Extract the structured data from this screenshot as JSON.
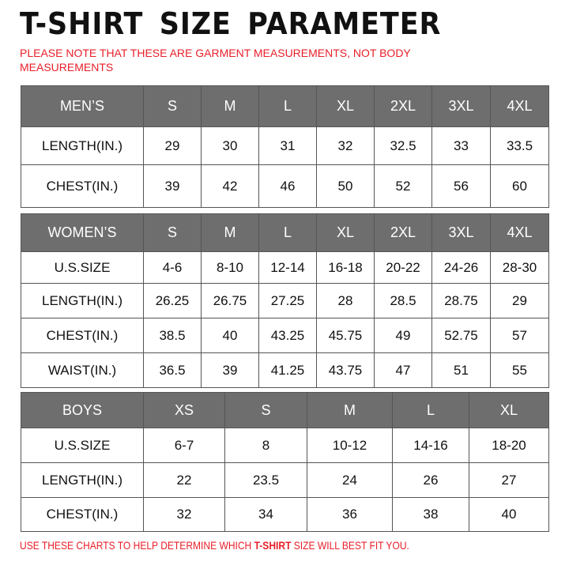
{
  "title": "T-SHIRT SIZE PARAMETER",
  "note": "PLEASE NOTE THAT THESE ARE GARMENT MEASUREMENTS, NOT BODY MEASUREMENTS",
  "footer": {
    "before": "USE THESE CHARTS TO HELP DETERMINE WHICH ",
    "bold": "T-SHIRT",
    "after": " SIZE WILL BEST FIT YOU."
  },
  "colors": {
    "header_bg": "#6e6e6e",
    "note_red": "#e8202a"
  },
  "tables": {
    "men": {
      "header": [
        "MEN’S",
        "S",
        "M",
        "L",
        "XL",
        "2XL",
        "3XL",
        "4XL"
      ],
      "rows": [
        [
          "LENGTH(IN.)",
          "29",
          "30",
          "31",
          "32",
          "32.5",
          "33",
          "33.5"
        ],
        [
          "CHEST(IN.)",
          "39",
          "42",
          "46",
          "50",
          "52",
          "56",
          "60"
        ]
      ]
    },
    "women": {
      "header": [
        "WOMEN’S",
        "S",
        "M",
        "L",
        "XL",
        "2XL",
        "3XL",
        "4XL"
      ],
      "rows": [
        [
          "U.S.SIZE",
          "4-6",
          "8-10",
          "12-14",
          "16-18",
          "20-22",
          "24-26",
          "28-30"
        ],
        [
          "LENGTH(IN.)",
          "26.25",
          "26.75",
          "27.25",
          "28",
          "28.5",
          "28.75",
          "29"
        ],
        [
          "CHEST(IN.)",
          "38.5",
          "40",
          "43.25",
          "45.75",
          "49",
          "52.75",
          "57"
        ],
        [
          "WAIST(IN.)",
          "36.5",
          "39",
          "41.25",
          "43.75",
          "47",
          "51",
          "55"
        ]
      ]
    },
    "boys": {
      "header": [
        "BOYS",
        "XS",
        "S",
        "M",
        "L",
        "XL"
      ],
      "rows": [
        [
          "U.S.SIZE",
          "6-7",
          "8",
          "10-12",
          "14-16",
          "18-20"
        ],
        [
          "LENGTH(IN.)",
          "22",
          "23.5",
          "24",
          "26",
          "27"
        ],
        [
          "CHEST(IN.)",
          "32",
          "34",
          "36",
          "38",
          "40"
        ]
      ]
    }
  }
}
